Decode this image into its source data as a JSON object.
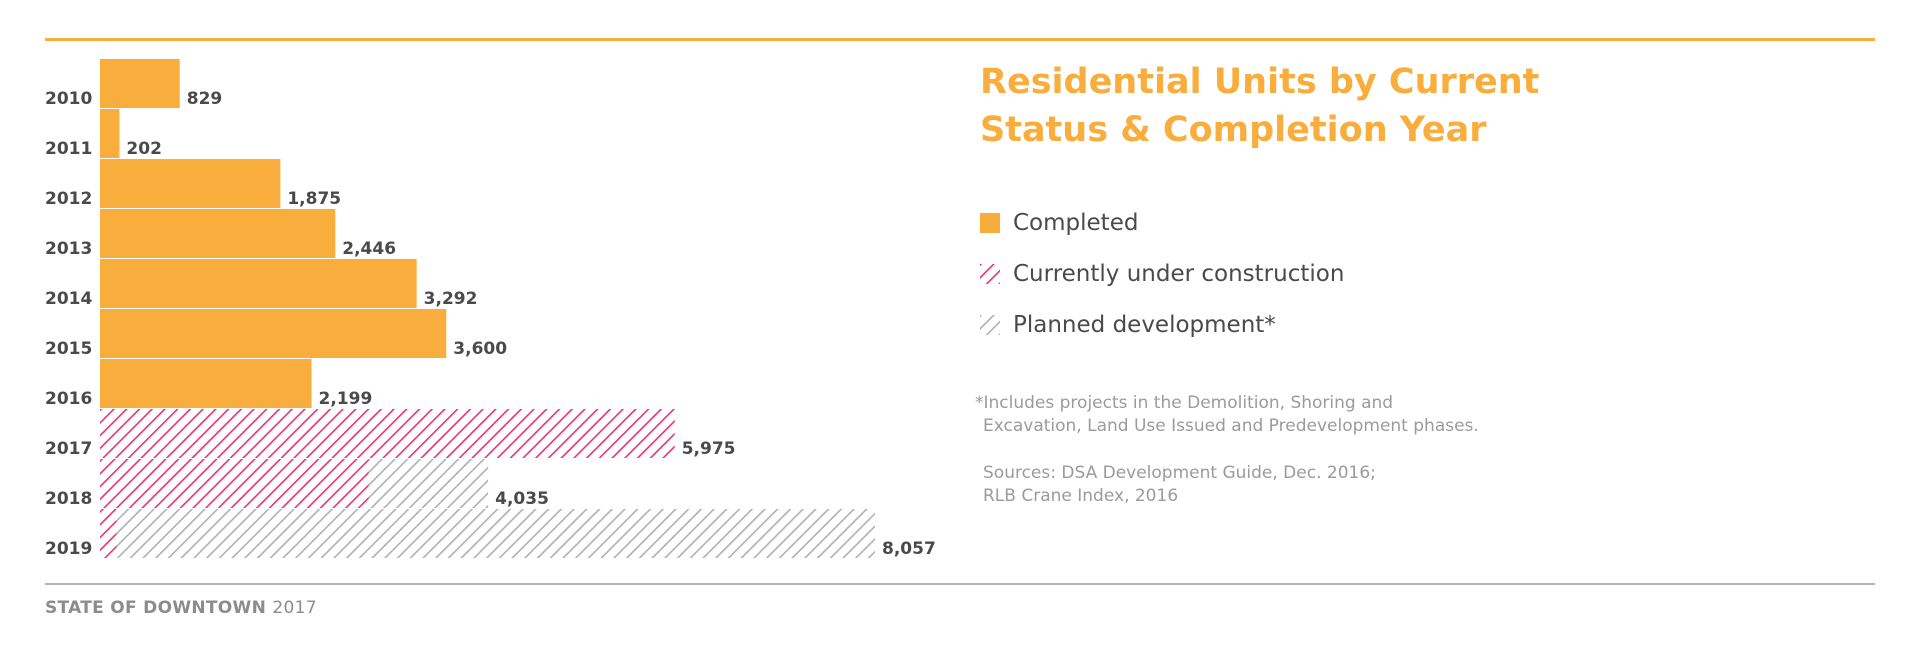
{
  "title": {
    "line1": "Residential Units by Current",
    "line2": "Status & Completion Year"
  },
  "colors": {
    "completed": "#f8ad3c",
    "construction": "#e8317a",
    "planned": "#b0b0b0",
    "text_dark": "#4a4a4a",
    "text_muted": "#9b9b9b"
  },
  "legend": [
    {
      "label": "Completed",
      "key": "completed",
      "pattern": "solid"
    },
    {
      "label": "Currently under construction",
      "key": "construction",
      "pattern": "hatch"
    },
    {
      "label": "Planned development*",
      "key": "planned",
      "pattern": "hatch"
    }
  ],
  "notes": {
    "footnote_line1": "*Includes projects in the Demolition, Shoring and",
    "footnote_line2": "Excavation, Land Use Issued and Predevelopment phases.",
    "sources_line1": "Sources: DSA Development Guide, Dec. 2016;",
    "sources_line2": "RLB Crane Index, 2016"
  },
  "footer": {
    "label": "STATE OF DOWNTOWN",
    "year": "2017"
  },
  "chart_data": {
    "type": "bar",
    "orientation": "horizontal",
    "stacked": true,
    "title": "Residential Units by Current Status & Completion Year",
    "categories": [
      "2010",
      "2011",
      "2012",
      "2013",
      "2014",
      "2015",
      "2016",
      "2017",
      "2018",
      "2019"
    ],
    "series": [
      {
        "name": "Completed",
        "key": "completed",
        "values": [
          829,
          202,
          1875,
          2446,
          3292,
          3600,
          2199,
          0,
          0,
          0
        ]
      },
      {
        "name": "Currently under construction",
        "key": "construction",
        "values": [
          0,
          0,
          0,
          0,
          0,
          0,
          0,
          5975,
          2795,
          172
        ]
      },
      {
        "name": "Planned development*",
        "key": "planned",
        "values": [
          0,
          0,
          0,
          0,
          0,
          0,
          0,
          0,
          1240,
          7885
        ]
      }
    ],
    "totals": [
      829,
      202,
      1875,
      2446,
      3292,
      3600,
      2199,
      5975,
      4035,
      8057
    ],
    "total_labels": [
      "829",
      "202",
      "1,875",
      "2,446",
      "3,292",
      "3,600",
      "2,199",
      "5,975",
      "4,035",
      "8,057"
    ],
    "xlabel": "",
    "ylabel": "",
    "xlim": [
      0,
      8057
    ],
    "grid": false
  }
}
